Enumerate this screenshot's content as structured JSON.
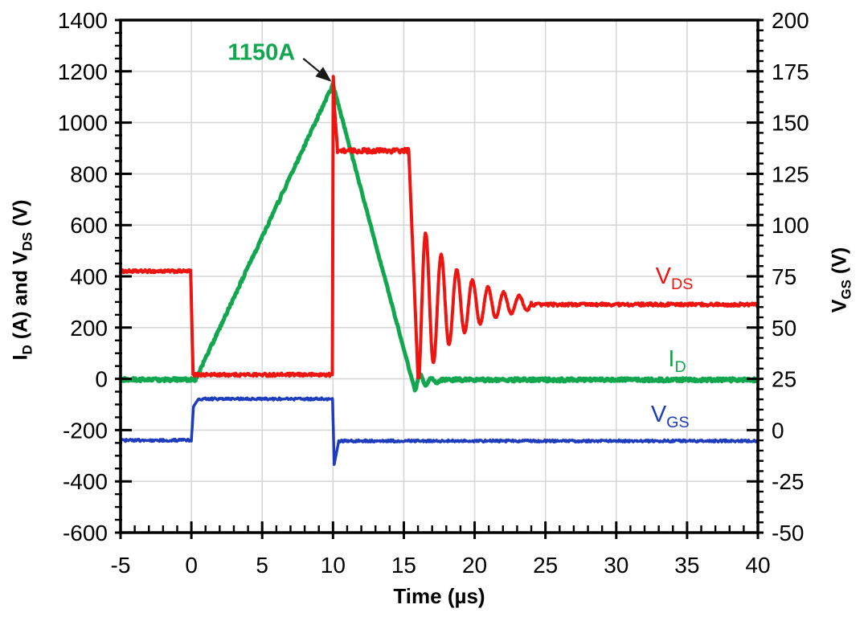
{
  "chart_data": {
    "type": "line",
    "title": "",
    "xlabel": "Time (µs)",
    "ylabel_left_runs": [
      "I",
      "D",
      " (A) and V",
      "DS",
      " (V)"
    ],
    "ylabel_right_runs": [
      "V",
      "GS",
      " (V)"
    ],
    "x_axis": {
      "min": -5,
      "max": 40,
      "ticks": [
        -5,
        0,
        5,
        10,
        15,
        20,
        25,
        30,
        35,
        40
      ],
      "minor_step": 1
    },
    "y_left": {
      "min": -600,
      "max": 1400,
      "ticks": [
        1400,
        1200,
        1000,
        800,
        600,
        400,
        200,
        0,
        -200,
        -400,
        -600
      ],
      "minor_step": 50
    },
    "y_right": {
      "min": -50,
      "max": 200,
      "ticks": [
        200,
        175,
        150,
        125,
        100,
        75,
        50,
        25,
        0,
        -25,
        -50
      ],
      "minor_step": 5
    },
    "grid": true,
    "grid_color": "#d7d7d7",
    "annotation": {
      "text": "1150A",
      "color": "#12a74f",
      "text_pos": {
        "t": 4.95,
        "v": 1272
      },
      "arrow": {
        "from": {
          "t": 7.9,
          "v": 1250
        },
        "to": {
          "t": 9.7,
          "v": 1168
        }
      }
    },
    "key_points": {
      "peak_drain_current_A": 1150,
      "peak_at_time_us": 10,
      "vds_bus_initial_V": 420,
      "vds_clamp_plateau_V": 890,
      "vds_final_settle_V": 290,
      "vgs_off_V": -5,
      "vgs_on_V": 15
    },
    "series": [
      {
        "name": "V_DS",
        "axis": "left",
        "color": "#ee1410",
        "width": 4,
        "label": {
          "main": "V",
          "sub": "DS"
        },
        "label_pos": {
          "t": 34.1,
          "v": 392
        },
        "segments": [
          {
            "type": "flat",
            "t0": -5,
            "t1": -0.05,
            "v": 420,
            "noise": 5.5
          },
          {
            "type": "line",
            "t0": -0.05,
            "t1": 0.12,
            "v0": 420,
            "v1": 18
          },
          {
            "type": "flat",
            "t0": 0.12,
            "t1": 9.95,
            "v": 16,
            "noise": 6
          },
          {
            "type": "line",
            "t0": 9.95,
            "t1": 10.02,
            "v0": 16,
            "v1": 1180
          },
          {
            "type": "line",
            "t0": 10.02,
            "t1": 10.1,
            "v0": 1180,
            "v1": 1060
          },
          {
            "type": "line",
            "t0": 10.1,
            "t1": 10.32,
            "v0": 1060,
            "v1": 893,
            "noise": 4
          },
          {
            "type": "flat",
            "t0": 10.32,
            "t1": 15.35,
            "v": 890,
            "noise": 9
          },
          {
            "type": "line",
            "t0": 15.35,
            "t1": 16.0,
            "v0": 890,
            "v1": 8
          },
          {
            "type": "ring",
            "t0": 16.0,
            "t1": 24.0,
            "base": 293,
            "amp": 330,
            "decay": 0.33,
            "period": 1.1,
            "clampMin": 4,
            "noise": 3
          },
          {
            "type": "flat",
            "t0": 24.0,
            "t1": 40,
            "v": 290,
            "noise": 6
          }
        ]
      },
      {
        "name": "I_D",
        "axis": "left",
        "color": "#12a74f",
        "width": 5,
        "label": {
          "main": "I",
          "sub": "D"
        },
        "label_pos": {
          "t": 34.3,
          "v": 68
        },
        "segments": [
          {
            "type": "flat",
            "t0": -5,
            "t1": 0.3,
            "v": -3,
            "noise": 6.5
          },
          {
            "type": "line",
            "t0": 0.3,
            "t1": 10.0,
            "v0": -3,
            "v1": 1148,
            "noise": 6
          },
          {
            "type": "line",
            "t0": 10.0,
            "t1": 15.78,
            "v0": 1148,
            "v1": -45,
            "noise": 4
          },
          {
            "type": "ring",
            "t0": 15.78,
            "t1": 17.6,
            "base": -8,
            "amp": 38,
            "decay": 1.1,
            "period": 0.78,
            "noise": 3
          },
          {
            "type": "flat",
            "t0": 17.6,
            "t1": 40,
            "v": -4,
            "noise": 6.5
          }
        ]
      },
      {
        "name": "V_GS",
        "axis": "right",
        "color": "#1e3cbe",
        "width": 3.5,
        "label": {
          "main": "V",
          "sub": "GS"
        },
        "label_pos": {
          "t": 33.8,
          "v": -150
        },
        "segments": [
          {
            "type": "flat",
            "t0": -5,
            "t1": 0,
            "v": -5.0,
            "noise": 0.6
          },
          {
            "type": "line",
            "t0": 0,
            "t1": 0.15,
            "v0": -5.0,
            "v1": 11.5
          },
          {
            "type": "line",
            "t0": 0.15,
            "t1": 0.5,
            "v0": 11.5,
            "v1": 15.2
          },
          {
            "type": "flat",
            "t0": 0.5,
            "t1": 9.97,
            "v": 15.2,
            "noise": 0.55
          },
          {
            "type": "line",
            "t0": 9.97,
            "t1": 10.08,
            "v0": 15.2,
            "v1": -16.8
          },
          {
            "type": "line",
            "t0": 10.08,
            "t1": 10.4,
            "v0": -16.8,
            "v1": -5.6
          },
          {
            "type": "flat",
            "t0": 10.4,
            "t1": 40,
            "v": -5.3,
            "noise": 0.55
          }
        ]
      }
    ]
  }
}
